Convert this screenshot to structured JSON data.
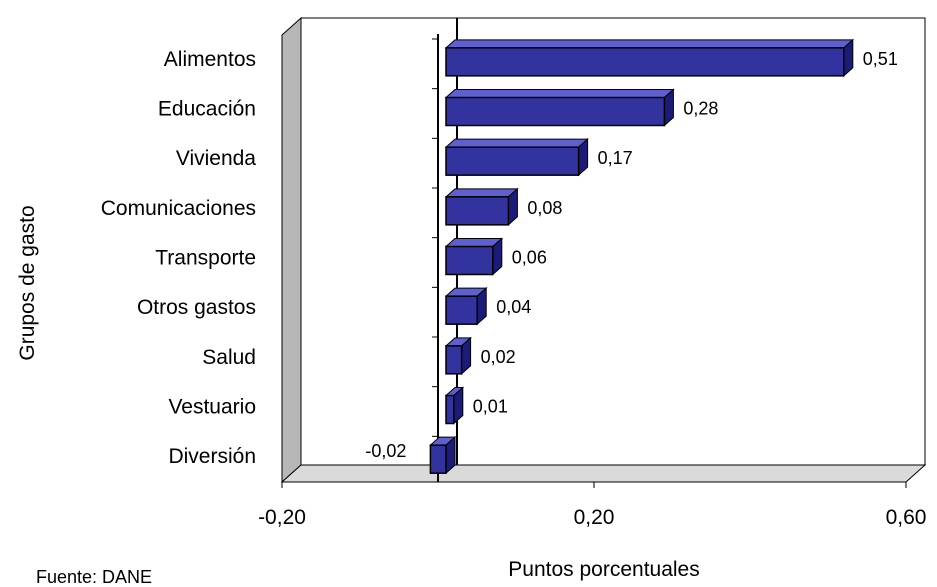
{
  "chart_data": {
    "type": "bar",
    "orientation": "horizontal",
    "three_d": true,
    "categories": [
      "Alimentos",
      "Educación",
      "Vivienda",
      "Comunicaciones",
      "Transporte",
      "Otros gastos",
      "Salud",
      "Vestuario",
      "Diversión"
    ],
    "values": [
      0.51,
      0.28,
      0.17,
      0.08,
      0.06,
      0.04,
      0.02,
      0.01,
      -0.02
    ],
    "data_labels": [
      "0,51",
      "0,28",
      "0,17",
      "0,08",
      "0,06",
      "0,04",
      "0,02",
      "0,01",
      "-0,02"
    ],
    "xlabel": "Puntos porcentuales",
    "ylabel": "Grupos de gasto",
    "xlim": [
      -0.2,
      0.6
    ],
    "x_ticks": [
      -0.2,
      0.2,
      0.6
    ],
    "x_tick_labels": [
      "-0,20",
      "0,20",
      "0,60"
    ],
    "grid": false,
    "legend": "none",
    "colors": {
      "bar_front": "#3333a0",
      "bar_top": "#5f5fd0",
      "bar_side": "#1c1c78",
      "bar_outline": "#000000",
      "back_wall": "#ffffff",
      "left_wall": "#b7b7b7",
      "floor": "#dadada"
    },
    "source_note": "Fuente: DANE"
  }
}
